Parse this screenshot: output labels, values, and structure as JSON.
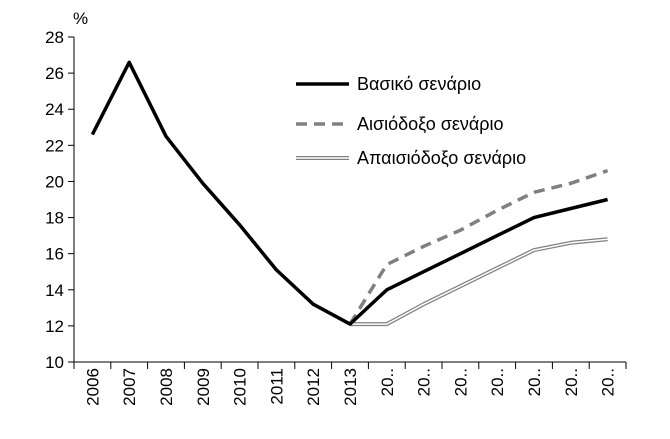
{
  "chart_data": {
    "type": "line",
    "unit_label": "%",
    "categories": [
      "2006",
      "2007",
      "2008",
      "2009",
      "2010",
      "2011",
      "2012",
      "2013",
      "20..",
      "20..",
      "20..",
      "20..",
      "20..",
      "20..",
      "20.."
    ],
    "ylim": [
      10,
      28
    ],
    "yticks": [
      10,
      12,
      14,
      16,
      18,
      20,
      22,
      24,
      26,
      28
    ],
    "grid": false,
    "legend_position": "top-right",
    "series": [
      {
        "name": "Βασικό σενάριο",
        "style": "solid-thick",
        "color": "#000000",
        "values": [
          22.6,
          26.6,
          22.5,
          19.9,
          17.6,
          15.1,
          13.2,
          12.1,
          14.0,
          15.0,
          16.0,
          17.0,
          18.0,
          18.5,
          19.0
        ]
      },
      {
        "name": "Αισιόδοξο σενάριο",
        "style": "dashed",
        "color": "#808080",
        "values": [
          null,
          null,
          null,
          null,
          null,
          null,
          null,
          12.1,
          15.4,
          16.4,
          17.3,
          18.4,
          19.4,
          19.9,
          20.6
        ]
      },
      {
        "name": "Απαισιόδοξο σενάριο",
        "style": "double",
        "color": "#808080",
        "values": [
          null,
          null,
          null,
          null,
          null,
          null,
          null,
          12.1,
          12.1,
          13.2,
          14.2,
          15.2,
          16.2,
          16.6,
          16.8
        ]
      }
    ]
  }
}
